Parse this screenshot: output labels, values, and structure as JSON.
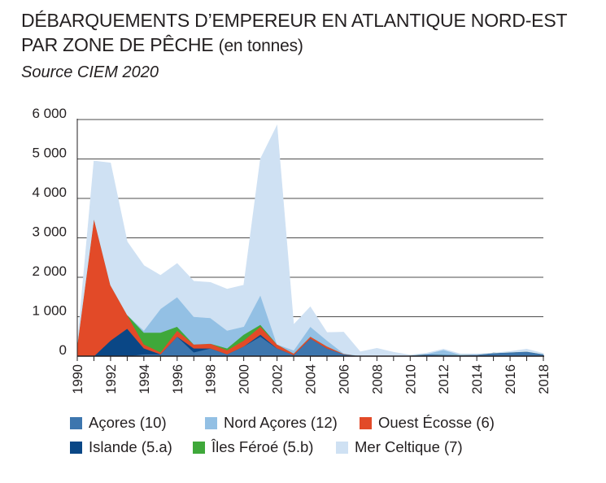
{
  "title_line1": "DÉBARQUEMENTS D’EMPEREUR EN ATLANTIQUE NORD-EST",
  "title_line2": "PAR ZONE DE PÊCHE",
  "title_unit": "(en tonnes)",
  "source": "Source CIEM 2020",
  "chart_data": {
    "type": "area",
    "stacked": true,
    "title": "DÉBARQUEMENTS D’EMPEREUR EN ATLANTIQUE NORD-EST PAR ZONE DE PÊCHE (en tonnes)",
    "xlabel": "",
    "ylabel": "",
    "ylim": [
      0,
      6000
    ],
    "yticks": [
      0,
      1000,
      2000,
      3000,
      4000,
      5000,
      6000
    ],
    "ytick_labels": [
      "0",
      "1 000",
      "2 000",
      "3 000",
      "4 000",
      "5 000",
      "6 000"
    ],
    "xticks": [
      1990,
      1992,
      1994,
      1996,
      1998,
      2000,
      2002,
      2004,
      2006,
      2008,
      2010,
      2012,
      2014,
      2016,
      2018
    ],
    "grid": "horizontal",
    "legend_position": "bottom",
    "x": [
      1990,
      1991,
      1992,
      1993,
      1994,
      1995,
      1996,
      1997,
      1998,
      1999,
      2000,
      2001,
      2002,
      2003,
      2004,
      2005,
      2006,
      2007,
      2008,
      2009,
      2010,
      2011,
      2012,
      2013,
      2014,
      2015,
      2016,
      2017,
      2018
    ],
    "series": [
      {
        "name": "Açores (10)",
        "color": "#3d76ae",
        "values": [
          0,
          0,
          0,
          0,
          50,
          50,
          500,
          100,
          200,
          50,
          250,
          500,
          200,
          30,
          450,
          200,
          50,
          0,
          0,
          0,
          20,
          50,
          40,
          30,
          40,
          80,
          100,
          120,
          50
        ]
      },
      {
        "name": "Islande (5.a)",
        "color": "#0a4786",
        "values": [
          0,
          0,
          400,
          700,
          150,
          0,
          0,
          100,
          0,
          0,
          0,
          50,
          0,
          0,
          0,
          0,
          0,
          0,
          0,
          0,
          0,
          0,
          0,
          0,
          0,
          0,
          0,
          0,
          0
        ]
      },
      {
        "name": "Ouest Écosse (6)",
        "color": "#e24a28",
        "values": [
          300,
          3500,
          1400,
          350,
          100,
          50,
          150,
          100,
          120,
          100,
          150,
          200,
          100,
          40,
          50,
          50,
          10,
          0,
          0,
          0,
          0,
          0,
          0,
          0,
          0,
          0,
          0,
          0,
          0
        ]
      },
      {
        "name": "Îles Féroé (5.b)",
        "color": "#3fa83a",
        "values": [
          0,
          0,
          0,
          0,
          300,
          500,
          100,
          0,
          0,
          50,
          150,
          50,
          0,
          0,
          0,
          0,
          0,
          0,
          0,
          0,
          0,
          0,
          0,
          0,
          0,
          0,
          0,
          0,
          0
        ]
      },
      {
        "name": "Nord Açores (12)",
        "color": "#93c0e4",
        "values": [
          0,
          0,
          0,
          0,
          50,
          600,
          750,
          700,
          650,
          450,
          200,
          750,
          0,
          80,
          250,
          150,
          10,
          10,
          0,
          0,
          0,
          10,
          120,
          10,
          0,
          0,
          0,
          0,
          0
        ]
      },
      {
        "name": "Mer Celtique (7)",
        "color": "#cfe1f3",
        "values": [
          0,
          1450,
          3100,
          1850,
          1650,
          850,
          850,
          900,
          900,
          1050,
          1050,
          3450,
          5550,
          650,
          500,
          200,
          540,
          100,
          200,
          100,
          10,
          20,
          20,
          20,
          20,
          0,
          20,
          60,
          20
        ]
      }
    ],
    "legend_order": [
      "Açores (10)",
      "Nord Açores (12)",
      "Ouest Écosse (6)",
      "Islande (5.a)",
      "Îles Féroé (5.b)",
      "Mer Celtique (7)"
    ]
  }
}
